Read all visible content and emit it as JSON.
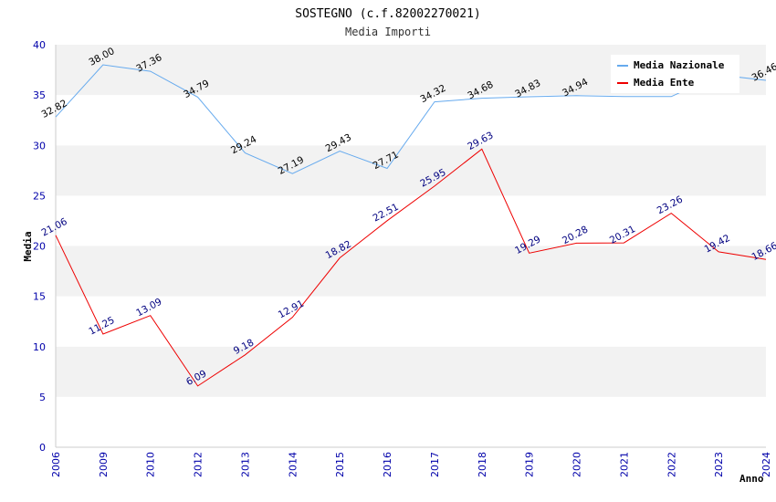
{
  "chart_data": {
    "type": "line",
    "title": "SOSTEGNO (c.f.82002270021)",
    "subtitle": "Media Importi",
    "xlabel": "Anno",
    "ylabel": "Media",
    "ylim": [
      0,
      40
    ],
    "yticks": [
      "0",
      "5",
      "10",
      "15",
      "20",
      "25",
      "30",
      "35",
      "40"
    ],
    "categories": [
      "2006",
      "2009",
      "2010",
      "2012",
      "2013",
      "2014",
      "2015",
      "2016",
      "2017",
      "2018",
      "2019",
      "2020",
      "2021",
      "2022",
      "2023",
      "2024"
    ],
    "legend_position": "top-right",
    "grid": "horizontal bands",
    "series": [
      {
        "name": "Media Nazionale",
        "color": "#66aaee",
        "values": [
          32.82,
          38.0,
          37.36,
          34.79,
          29.24,
          27.19,
          29.43,
          27.71,
          34.32,
          34.68,
          34.83,
          34.94,
          34.85,
          34.85,
          37.0,
          36.46
        ],
        "labels": [
          "32.82",
          "38.00",
          "37.36",
          "34.79",
          "29.24",
          "27.19",
          "29.43",
          "27.71",
          "34.32",
          "34.68",
          "34.83",
          "34.94",
          "",
          "",
          "",
          "36.46"
        ]
      },
      {
        "name": "Media Ente",
        "color": "#ee0000",
        "values": [
          21.06,
          11.25,
          13.09,
          6.09,
          9.18,
          12.91,
          18.82,
          22.51,
          25.95,
          29.63,
          19.29,
          20.28,
          20.31,
          23.26,
          19.42,
          18.66
        ],
        "labels": [
          "21.06",
          "11.25",
          "13.09",
          "6.09",
          "9.18",
          "12.91",
          "18.82",
          "22.51",
          "25.95",
          "29.63",
          "19.29",
          "20.28",
          "20.31",
          "23.26",
          "19.42",
          "18.66"
        ]
      }
    ]
  }
}
